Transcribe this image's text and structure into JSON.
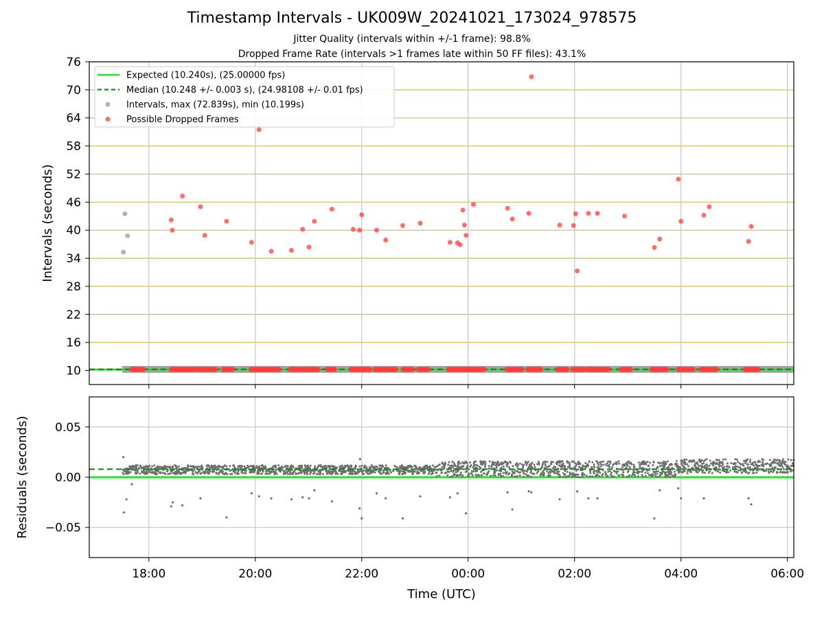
{
  "title": "Timestamp Intervals - UK009W_20241021_173024_978575",
  "subtitle_1": "Jitter Quality (intervals within +/-1 frame): 98.8%",
  "subtitle_2": "Dropped Frame Rate (intervals >1 frames late within 50 FF files): 43.1%",
  "colors": {
    "expected": "#1ee61e",
    "median": "#138a13",
    "intervals": "#999999",
    "dropped": "#ff3b3b",
    "hgrid": "#d4bf6a",
    "vgrid": "#c8c8c8",
    "residuals": "#6e6e6e"
  },
  "chart_data": [
    {
      "type": "scatter",
      "ylabel": "Intervals (seconds)",
      "xlabel": "",
      "xlim_hours": [
        16.88,
        30.12
      ],
      "ylim": [
        7,
        76
      ],
      "x_ticks": [
        {
          "h": 18,
          "label": "18:00"
        },
        {
          "h": 20,
          "label": "20:00"
        },
        {
          "h": 22,
          "label": "22:00"
        },
        {
          "h": 24,
          "label": "00:00"
        },
        {
          "h": 26,
          "label": "02:00"
        },
        {
          "h": 28,
          "label": "04:00"
        },
        {
          "h": 30,
          "label": "06:00"
        }
      ],
      "y_ticks": [
        {
          "v": 10,
          "label": "10"
        },
        {
          "v": 16,
          "label": "16"
        },
        {
          "v": 22,
          "label": "22"
        },
        {
          "v": 28,
          "label": "28"
        },
        {
          "v": 34,
          "label": "34"
        },
        {
          "v": 40,
          "label": "40"
        },
        {
          "v": 46,
          "label": "46"
        },
        {
          "v": 52,
          "label": "52"
        },
        {
          "v": 58,
          "label": "58"
        },
        {
          "v": 64,
          "label": "64"
        },
        {
          "v": 70,
          "label": "70"
        },
        {
          "v": 76,
          "label": "76"
        }
      ],
      "grid": "horizontal gold lines + vertical gray lines",
      "expected_value": 10.24,
      "median_value": 10.248,
      "legend_position": "upper-left",
      "legend": [
        {
          "label": "Expected (10.240s), (25.00000 fps)",
          "style": "solid-line",
          "color_key": "expected"
        },
        {
          "label": "Median (10.248 +/- 0.003 s), (24.98108 +/- 0.01 fps)",
          "style": "dashed-line",
          "color_key": "median"
        },
        {
          "label": "Intervals, max (72.839s), min (10.199s)",
          "style": "dot",
          "color_key": "intervals"
        },
        {
          "label": "Possible Dropped Frames",
          "style": "dot",
          "color_key": "dropped"
        }
      ],
      "interval_outliers": [
        {
          "x": 17.55,
          "y": 43.5
        },
        {
          "x": 17.6,
          "y": 38.8
        },
        {
          "x": 17.52,
          "y": 35.3
        }
      ],
      "dropped_frames": [
        {
          "x": 18.42,
          "y": 42.2
        },
        {
          "x": 18.44,
          "y": 40.0
        },
        {
          "x": 18.63,
          "y": 47.3
        },
        {
          "x": 18.97,
          "y": 45.0
        },
        {
          "x": 19.05,
          "y": 38.9
        },
        {
          "x": 19.46,
          "y": 41.9
        },
        {
          "x": 19.93,
          "y": 37.4
        },
        {
          "x": 20.07,
          "y": 61.5
        },
        {
          "x": 20.3,
          "y": 35.5
        },
        {
          "x": 20.68,
          "y": 35.7
        },
        {
          "x": 20.89,
          "y": 40.2
        },
        {
          "x": 21.01,
          "y": 36.4
        },
        {
          "x": 21.11,
          "y": 41.9
        },
        {
          "x": 21.44,
          "y": 44.5
        },
        {
          "x": 21.84,
          "y": 40.2
        },
        {
          "x": 21.96,
          "y": 40.0
        },
        {
          "x": 22.0,
          "y": 43.3
        },
        {
          "x": 22.28,
          "y": 40.0
        },
        {
          "x": 22.45,
          "y": 37.9
        },
        {
          "x": 22.77,
          "y": 41.0
        },
        {
          "x": 23.1,
          "y": 41.5
        },
        {
          "x": 23.66,
          "y": 37.4
        },
        {
          "x": 23.8,
          "y": 37.3
        },
        {
          "x": 23.85,
          "y": 36.9
        },
        {
          "x": 23.9,
          "y": 44.3
        },
        {
          "x": 23.93,
          "y": 41.1
        },
        {
          "x": 23.96,
          "y": 38.9
        },
        {
          "x": 24.1,
          "y": 45.5
        },
        {
          "x": 24.74,
          "y": 44.7
        },
        {
          "x": 24.83,
          "y": 42.4
        },
        {
          "x": 25.14,
          "y": 43.6
        },
        {
          "x": 25.19,
          "y": 72.8
        },
        {
          "x": 25.72,
          "y": 41.1
        },
        {
          "x": 25.98,
          "y": 41.0
        },
        {
          "x": 26.02,
          "y": 43.5
        },
        {
          "x": 26.05,
          "y": 31.3
        },
        {
          "x": 26.26,
          "y": 43.6
        },
        {
          "x": 26.43,
          "y": 43.6
        },
        {
          "x": 26.94,
          "y": 43.0
        },
        {
          "x": 27.5,
          "y": 36.3
        },
        {
          "x": 27.6,
          "y": 38.1
        },
        {
          "x": 27.95,
          "y": 50.9
        },
        {
          "x": 28.0,
          "y": 41.9
        },
        {
          "x": 28.43,
          "y": 43.2
        },
        {
          "x": 28.53,
          "y": 45.0
        },
        {
          "x": 29.27,
          "y": 37.6
        },
        {
          "x": 29.32,
          "y": 40.8
        }
      ],
      "baseline_dropped_segments": [
        [
          17.68,
          17.9
        ],
        [
          18.42,
          18.88
        ],
        [
          18.93,
          19.25
        ],
        [
          19.4,
          19.6
        ],
        [
          19.92,
          20.48
        ],
        [
          20.66,
          20.88
        ],
        [
          20.93,
          21.2
        ],
        [
          21.35,
          21.52
        ],
        [
          21.8,
          22.18
        ],
        [
          22.25,
          22.64
        ],
        [
          22.78,
          22.98
        ],
        [
          23.07,
          23.25
        ],
        [
          23.63,
          24.3
        ],
        [
          24.73,
          25.02
        ],
        [
          25.12,
          25.4
        ],
        [
          25.68,
          25.88
        ],
        [
          25.97,
          26.2
        ],
        [
          26.25,
          26.65
        ],
        [
          26.88,
          27.06
        ],
        [
          27.45,
          27.75
        ],
        [
          27.95,
          28.25
        ],
        [
          28.38,
          28.68
        ],
        [
          29.2,
          29.45
        ]
      ]
    },
    {
      "type": "scatter",
      "xlabel": "Time (UTC)",
      "ylabel": "Residuals (seconds)",
      "xlim_hours": [
        16.88,
        30.12
      ],
      "ylim": [
        -0.08,
        0.08
      ],
      "y_ticks": [
        {
          "v": 0.05,
          "label": "0.05"
        },
        {
          "v": 0.0,
          "label": "0.00"
        },
        {
          "v": -0.05,
          "label": "−0.05"
        }
      ],
      "expected_residual": 0.0,
      "median_residual": 0.008,
      "residual_outliers": [
        {
          "x": 17.52,
          "y": 0.02
        },
        {
          "x": 17.53,
          "y": -0.035
        },
        {
          "x": 17.58,
          "y": -0.022
        },
        {
          "x": 17.68,
          "y": -0.007
        },
        {
          "x": 18.42,
          "y": -0.029
        },
        {
          "x": 18.45,
          "y": -0.025
        },
        {
          "x": 18.63,
          "y": -0.028
        },
        {
          "x": 18.97,
          "y": -0.021
        },
        {
          "x": 19.46,
          "y": -0.04
        },
        {
          "x": 19.93,
          "y": -0.016
        },
        {
          "x": 20.07,
          "y": -0.019
        },
        {
          "x": 20.3,
          "y": -0.021
        },
        {
          "x": 20.68,
          "y": -0.022
        },
        {
          "x": 20.89,
          "y": -0.02
        },
        {
          "x": 21.01,
          "y": -0.021
        },
        {
          "x": 21.11,
          "y": -0.013
        },
        {
          "x": 21.44,
          "y": -0.024
        },
        {
          "x": 21.96,
          "y": -0.031
        },
        {
          "x": 22.0,
          "y": -0.041
        },
        {
          "x": 21.97,
          "y": 0.018
        },
        {
          "x": 22.28,
          "y": -0.016
        },
        {
          "x": 22.45,
          "y": -0.021
        },
        {
          "x": 22.77,
          "y": -0.041
        },
        {
          "x": 23.1,
          "y": -0.019
        },
        {
          "x": 23.66,
          "y": -0.02
        },
        {
          "x": 23.8,
          "y": -0.016
        },
        {
          "x": 23.96,
          "y": -0.036
        },
        {
          "x": 24.74,
          "y": -0.015
        },
        {
          "x": 24.83,
          "y": -0.032
        },
        {
          "x": 25.14,
          "y": -0.014
        },
        {
          "x": 25.19,
          "y": -0.015
        },
        {
          "x": 25.72,
          "y": -0.022
        },
        {
          "x": 26.05,
          "y": -0.014
        },
        {
          "x": 26.26,
          "y": -0.021
        },
        {
          "x": 26.43,
          "y": -0.021
        },
        {
          "x": 27.5,
          "y": -0.041
        },
        {
          "x": 27.6,
          "y": -0.013
        },
        {
          "x": 27.95,
          "y": -0.011
        },
        {
          "x": 28.0,
          "y": -0.021
        },
        {
          "x": 28.43,
          "y": -0.021
        },
        {
          "x": 29.27,
          "y": -0.021
        },
        {
          "x": 29.32,
          "y": -0.027
        }
      ],
      "residual_bands": [
        {
          "x_range": [
            17.5,
            23.4
          ],
          "y_min": 0.003,
          "y_max": 0.012
        },
        {
          "x_range": [
            23.4,
            27.9
          ],
          "y_min": 0.0,
          "y_max": 0.016
        },
        {
          "x_range": [
            27.9,
            30.12
          ],
          "y_min": 0.004,
          "y_max": 0.018
        }
      ]
    }
  ]
}
